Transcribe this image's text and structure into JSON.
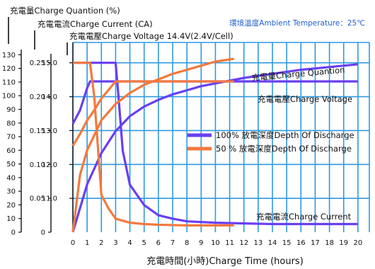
{
  "chart_data": {
    "type": "line",
    "axis_titles": {
      "quantity": "充電量Charge Quantion (%)",
      "current": "充電電流Charge Current (CA)",
      "voltage": "充電電壓Charge Voltage 14.4V(2.4V/Cell)"
    },
    "ambient": "環境溫度Ambient Temperature：25℃",
    "xlabel": "充電時間(小時)Charge Time (hours)",
    "x_ticks": [
      "0",
      "1",
      "2",
      "3",
      "4",
      "5",
      "6",
      "7",
      "8",
      "9",
      "10",
      "11",
      "12",
      "13",
      "14",
      "15",
      "16",
      "17",
      "18",
      "19",
      "20"
    ],
    "xlim": [
      0,
      20.8
    ],
    "voltage_axis": {
      "ticks": [
        "15.0",
        "14.0",
        "13.0",
        "12.0",
        "11.0"
      ],
      "values": [
        15,
        14,
        13,
        12,
        11
      ],
      "ylim": [
        10.0,
        15.6
      ]
    },
    "current_axis": {
      "ticks": [
        "0.25",
        "0.20",
        "0.15",
        "0.10",
        "0.05",
        "0"
      ],
      "values": [
        0.25,
        0.2,
        0.15,
        0.1,
        0.05,
        0
      ],
      "ylim": [
        0,
        0.28
      ]
    },
    "quantity_axis": {
      "ticks": [
        "130",
        "120",
        "110",
        "100",
        "90",
        "80",
        "70",
        "60",
        "50",
        "40",
        "30",
        "20",
        "10",
        "0"
      ],
      "values": [
        130,
        120,
        110,
        100,
        90,
        80,
        70,
        60,
        50,
        40,
        30,
        20,
        10,
        0
      ],
      "ylim": [
        0,
        139
      ]
    },
    "curve_labels": {
      "quantity": "充電量Charge Quantion",
      "voltage": "充電電壓Charge Voltage",
      "current": "充電電流Charge Current"
    },
    "series": [
      {
        "name": "100% 放電深度Depth Of Discharge",
        "color": "#6a3ff0",
        "quantity": {
          "x": [
            0,
            1,
            2,
            3,
            4,
            5,
            6,
            7,
            8,
            9,
            10,
            12,
            14,
            16,
            18,
            20
          ],
          "y": [
            0,
            35,
            58,
            74,
            85,
            92,
            97,
            101,
            104,
            107,
            109,
            113,
            116,
            119,
            121,
            123
          ]
        },
        "voltage": {
          "x": [
            0,
            0.5,
            1,
            1.2,
            2,
            4,
            6,
            8,
            10,
            12,
            14,
            16,
            18,
            20
          ],
          "y": [
            13.2,
            13.6,
            14.25,
            14.45,
            14.45,
            14.45,
            14.45,
            14.45,
            14.45,
            14.45,
            14.45,
            14.45,
            14.45,
            14.45
          ]
        },
        "current": {
          "x": [
            0,
            1,
            2,
            2.5,
            3,
            3.2,
            3.5,
            4,
            5,
            6,
            7,
            8,
            10,
            12,
            14,
            16,
            18,
            20
          ],
          "y": [
            0.25,
            0.25,
            0.25,
            0.25,
            0.25,
            0.2,
            0.12,
            0.07,
            0.04,
            0.025,
            0.02,
            0.016,
            0.014,
            0.013,
            0.012,
            0.012,
            0.012,
            0.012
          ]
        }
      },
      {
        "name": "50 % 放電深度Depth Of Discharge",
        "color": "#f4793c",
        "quantity": {
          "x": [
            0,
            0.5,
            1,
            2,
            3,
            4,
            5,
            6,
            7,
            8,
            9,
            10,
            11.3
          ],
          "y": [
            0,
            42,
            60,
            82,
            94,
            102,
            108,
            112,
            116,
            119,
            122,
            125,
            127
          ]
        },
        "voltage": {
          "x": [
            0,
            0.5,
            1,
            1.5,
            2,
            2.5,
            3,
            4,
            6,
            8,
            10,
            11.3
          ],
          "y": [
            12.55,
            12.9,
            13.3,
            13.6,
            13.95,
            14.2,
            14.45,
            14.45,
            14.45,
            14.45,
            14.45,
            14.45
          ]
        },
        "current": {
          "x": [
            0,
            0.5,
            1,
            1.2,
            1.5,
            2,
            2.5,
            3,
            4,
            5,
            6,
            8,
            10,
            11.3
          ],
          "y": [
            0.25,
            0.25,
            0.25,
            0.25,
            0.2,
            0.055,
            0.035,
            0.02,
            0.014,
            0.012,
            0.011,
            0.01,
            0.01,
            0.01
          ]
        }
      }
    ]
  }
}
